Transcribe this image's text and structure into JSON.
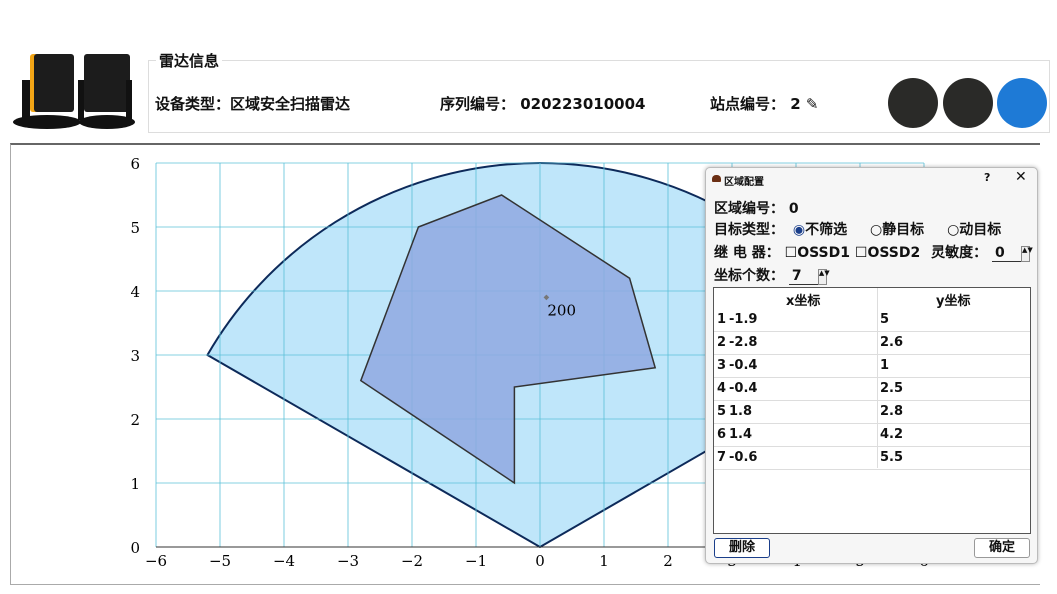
{
  "header": {
    "group_title": "雷达信息",
    "device_type_label": "设备类型：",
    "device_type": "区域安全扫描雷达",
    "serial_label": "序列编号：",
    "serial": "020223010004",
    "station_label": "站点编号：",
    "station": "2",
    "indicators": [
      {
        "color": "#2a2a28"
      },
      {
        "color": "#2a2a28"
      },
      {
        "color": "#1e7ad6"
      }
    ]
  },
  "chart_data": {
    "type": "scatter",
    "xlim": [
      -6,
      6
    ],
    "ylim": [
      0,
      6
    ],
    "grid": true,
    "x_ticks": [
      -6,
      -5,
      -4,
      -3,
      -2,
      -1,
      0,
      1,
      2,
      3,
      4,
      5,
      6
    ],
    "y_ticks": [
      0,
      1,
      2,
      3,
      4,
      5,
      6
    ],
    "sector": {
      "radius": 6,
      "angle_start_deg": 30,
      "angle_end_deg": 150,
      "fill": "#bfe6fa",
      "stroke": "#0d2a5a"
    },
    "polygon": {
      "points": [
        [
          -1.9,
          5
        ],
        [
          -2.8,
          2.6
        ],
        [
          -0.4,
          1
        ],
        [
          -0.4,
          2.5
        ],
        [
          1.8,
          2.8
        ],
        [
          1.4,
          4.2
        ],
        [
          -0.6,
          5.5
        ]
      ],
      "fill": "#8fa8e0",
      "stroke": "#333"
    },
    "marker": {
      "x": 0.1,
      "y": 3.9,
      "label": "200"
    }
  },
  "dialog": {
    "title": "区域配置",
    "help": "?",
    "close": "✕",
    "zone_label": "区域编号：",
    "zone": "0",
    "target_label": "目标类型：",
    "targets": [
      {
        "label": "不筛选",
        "checked": true
      },
      {
        "label": "静目标",
        "checked": false
      },
      {
        "label": "动目标",
        "checked": false
      }
    ],
    "relay_label": "继 电 器：",
    "relays": [
      "OSSD1",
      "OSSD2"
    ],
    "sens_label": "灵敏度：",
    "sens": "0",
    "count_label": "坐标个数：",
    "count": "7",
    "columns": [
      "x坐标",
      "y坐标"
    ],
    "rows": [
      [
        "1",
        "-1.9",
        "5"
      ],
      [
        "2",
        "-2.8",
        "2.6"
      ],
      [
        "3",
        "-0.4",
        "1"
      ],
      [
        "4",
        "-0.4",
        "2.5"
      ],
      [
        "5",
        "1.8",
        "2.8"
      ],
      [
        "6",
        "1.4",
        "4.2"
      ],
      [
        "7",
        "-0.6",
        "5.5"
      ]
    ],
    "delete": "删除",
    "ok": "确定"
  }
}
